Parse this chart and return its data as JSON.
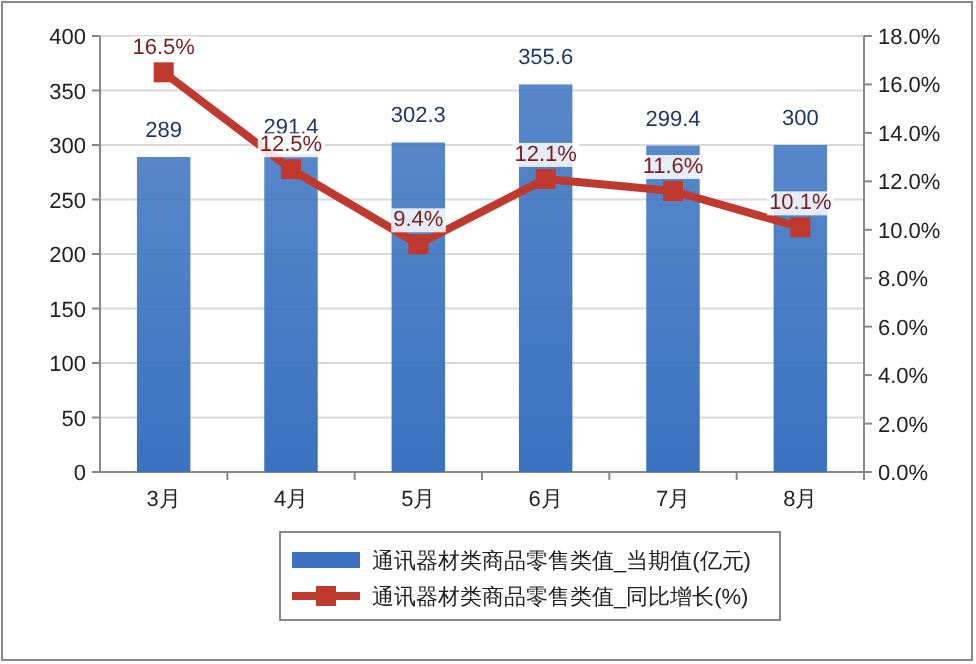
{
  "chart_data": {
    "type": "bar",
    "categories": [
      "3月",
      "4月",
      "5月",
      "6月",
      "7月",
      "8月"
    ],
    "series": [
      {
        "name": "通讯器材类商品零售类值_当期值(亿元)",
        "color": "#3a72c0",
        "values": [
          289,
          291.4,
          302.3,
          355.6,
          299.4,
          300
        ],
        "value_labels": [
          "289",
          "291.4",
          "302.3",
          "355.6",
          "299.4",
          "300"
        ]
      },
      {
        "name": "通讯器材类商品零售类值_同比增长(%)",
        "type": "line",
        "axis": "y2",
        "color": "#c0392f",
        "values": [
          16.5,
          12.5,
          9.4,
          12.1,
          11.6,
          10.1
        ],
        "value_labels": [
          "16.5%",
          "12.5%",
          "9.4%",
          "12.1%",
          "11.6%",
          "10.1%"
        ]
      }
    ],
    "ylim": [
      0,
      400
    ],
    "yticks": [
      0,
      50,
      100,
      150,
      200,
      250,
      300,
      350,
      400
    ],
    "y2lim": [
      0,
      18
    ],
    "y2ticks": [
      {
        "value": 0,
        "label": "0.0%"
      },
      {
        "value": 2,
        "label": "2.0%"
      },
      {
        "value": 4,
        "label": "4.0%"
      },
      {
        "value": 6,
        "label": "6.0%"
      },
      {
        "value": 8,
        "label": "8.0%"
      },
      {
        "value": 10,
        "label": "10.0%"
      },
      {
        "value": 12,
        "label": "12.0%"
      },
      {
        "value": 14,
        "label": "14.0%"
      },
      {
        "value": 16,
        "label": "16.0%"
      },
      {
        "value": 18,
        "label": "18.0%"
      }
    ],
    "grid": "y",
    "legend": "bottom",
    "marker": "square",
    "line_style": "solid"
  }
}
